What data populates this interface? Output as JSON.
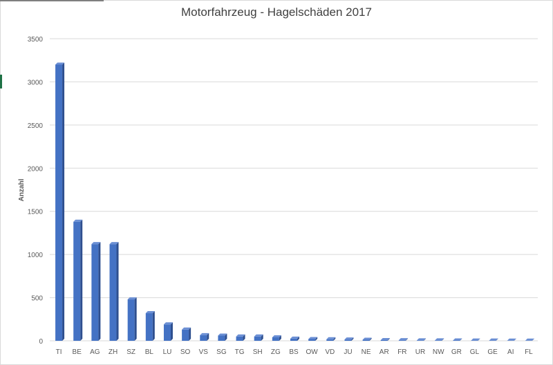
{
  "chart_data": {
    "type": "bar",
    "title": "Motorfahrzeug - Hagelschäden 2017",
    "xlabel": "",
    "ylabel": "Anzahl",
    "ylim": [
      0,
      3500
    ],
    "yticks": [
      0,
      500,
      1000,
      1500,
      2000,
      2500,
      3000,
      3500
    ],
    "grid": true,
    "legend": "none",
    "bar_color": "#4472c4",
    "categories": [
      "TI",
      "BE",
      "AG",
      "ZH",
      "SZ",
      "BL",
      "LU",
      "SO",
      "VS",
      "SG",
      "TG",
      "SH",
      "ZG",
      "BS",
      "OW",
      "VD",
      "JU",
      "NE",
      "AR",
      "FR",
      "UR",
      "NW",
      "GR",
      "GL",
      "GE",
      "AI",
      "FL"
    ],
    "values": [
      3200,
      1380,
      1120,
      1120,
      480,
      320,
      190,
      130,
      65,
      60,
      50,
      50,
      40,
      25,
      20,
      18,
      15,
      12,
      8,
      7,
      5,
      5,
      4,
      3,
      3,
      2,
      2
    ]
  }
}
